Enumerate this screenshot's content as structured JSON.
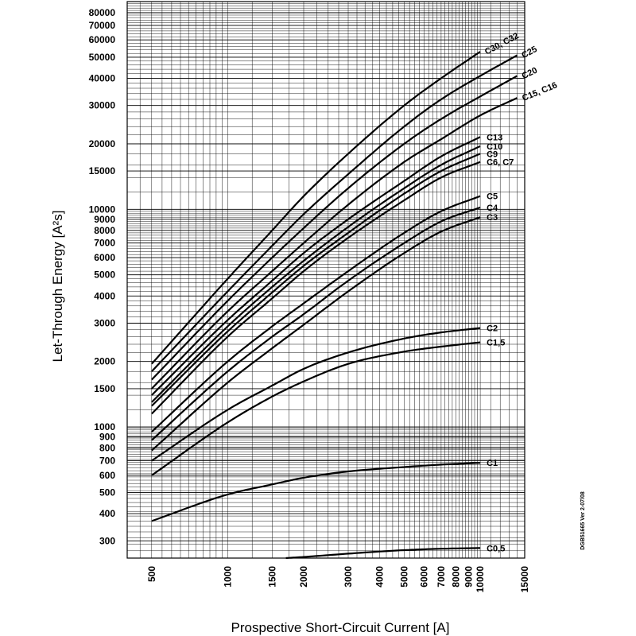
{
  "chart_data": {
    "type": "line",
    "xlabel": "Prospective Short-Circuit Current [A]",
    "ylabel": "Let-Through Energy [A²s]",
    "x_scale": "log",
    "y_scale": "log",
    "xlim": [
      400,
      15000
    ],
    "ylim": [
      250,
      90000
    ],
    "grid": true,
    "x_ticks": [
      500,
      1000,
      1500,
      2000,
      3000,
      4000,
      5000,
      6000,
      7000,
      8000,
      9000,
      10000,
      15000
    ],
    "y_ticks": [
      300,
      400,
      500,
      600,
      700,
      800,
      900,
      1000,
      1500,
      2000,
      3000,
      4000,
      5000,
      6000,
      7000,
      8000,
      9000,
      10000,
      15000,
      20000,
      30000,
      40000,
      50000,
      60000,
      70000,
      80000
    ],
    "side_note": "DGB51665 Ver 2-07/08",
    "series": [
      {
        "name": "C30, C32",
        "x": [
          500,
          1000,
          1500,
          2000,
          3000,
          5000,
          7000,
          10000
        ],
        "y": [
          1950,
          4800,
          8000,
          11500,
          18000,
          30000,
          40000,
          53000
        ]
      },
      {
        "name": "C25",
        "x": [
          500,
          1000,
          1500,
          2000,
          3000,
          5000,
          7000,
          10000,
          14000
        ],
        "y": [
          1800,
          4200,
          6800,
          9500,
          14500,
          24000,
          32000,
          41000,
          51000
        ]
      },
      {
        "name": "C20",
        "x": [
          500,
          1000,
          1500,
          2000,
          3000,
          5000,
          7000,
          10000,
          14000
        ],
        "y": [
          1650,
          3800,
          6000,
          8200,
          12500,
          20000,
          26000,
          33000,
          41000
        ]
      },
      {
        "name": "C15, C16",
        "x": [
          500,
          1000,
          1500,
          2000,
          3000,
          5000,
          7000,
          10000,
          14000
        ],
        "y": [
          1500,
          3400,
          5200,
          7000,
          10500,
          16500,
          21000,
          27000,
          32500
        ]
      },
      {
        "name": "C13",
        "x": [
          500,
          1000,
          1500,
          2000,
          3000,
          5000,
          7000,
          10000
        ],
        "y": [
          1400,
          3100,
          4700,
          6300,
          9000,
          13500,
          17500,
          21500
        ]
      },
      {
        "name": "C10",
        "x": [
          500,
          1000,
          1500,
          2000,
          3000,
          5000,
          7000,
          10000
        ],
        "y": [
          1300,
          2900,
          4400,
          5800,
          8300,
          12500,
          16000,
          19500
        ]
      },
      {
        "name": "C9",
        "x": [
          500,
          1000,
          1500,
          2000,
          3000,
          5000,
          7000,
          10000
        ],
        "y": [
          1250,
          2750,
          4150,
          5500,
          7800,
          11800,
          15000,
          18000
        ]
      },
      {
        "name": "C6, C7",
        "x": [
          500,
          1000,
          1500,
          2000,
          3000,
          5000,
          7000,
          10000
        ],
        "y": [
          1150,
          2600,
          3900,
          5200,
          7400,
          11000,
          14000,
          16500
        ]
      },
      {
        "name": "C5",
        "x": [
          500,
          1000,
          1500,
          2000,
          3000,
          5000,
          7000,
          10000
        ],
        "y": [
          950,
          2000,
          2900,
          3700,
          5200,
          7800,
          9800,
          11500
        ]
      },
      {
        "name": "C4",
        "x": [
          500,
          1000,
          1500,
          2000,
          3000,
          5000,
          7000,
          10000
        ],
        "y": [
          870,
          1800,
          2600,
          3300,
          4700,
          7000,
          8800,
          10200
        ]
      },
      {
        "name": "C3",
        "x": [
          500,
          1000,
          1500,
          2000,
          3000,
          5000,
          7000,
          10000
        ],
        "y": [
          780,
          1600,
          2300,
          2950,
          4200,
          6300,
          7900,
          9200
        ]
      },
      {
        "name": "C2",
        "x": [
          500,
          1000,
          1500,
          2000,
          3000,
          5000,
          7000,
          10000
        ],
        "y": [
          700,
          1200,
          1550,
          1850,
          2200,
          2550,
          2720,
          2850
        ]
      },
      {
        "name": "C1,5",
        "x": [
          500,
          1000,
          1500,
          2000,
          3000,
          5000,
          7000,
          10000
        ],
        "y": [
          600,
          1050,
          1380,
          1620,
          1950,
          2220,
          2340,
          2450
        ]
      },
      {
        "name": "C1",
        "x": [
          500,
          1000,
          1500,
          2000,
          3000,
          5000,
          7000,
          10000
        ],
        "y": [
          370,
          490,
          545,
          585,
          625,
          655,
          672,
          685
        ]
      },
      {
        "name": "C0,5",
        "x": [
          1700,
          2000,
          3000,
          5000,
          7000,
          10000
        ],
        "y": [
          250,
          253,
          262,
          272,
          276,
          278
        ]
      }
    ]
  }
}
